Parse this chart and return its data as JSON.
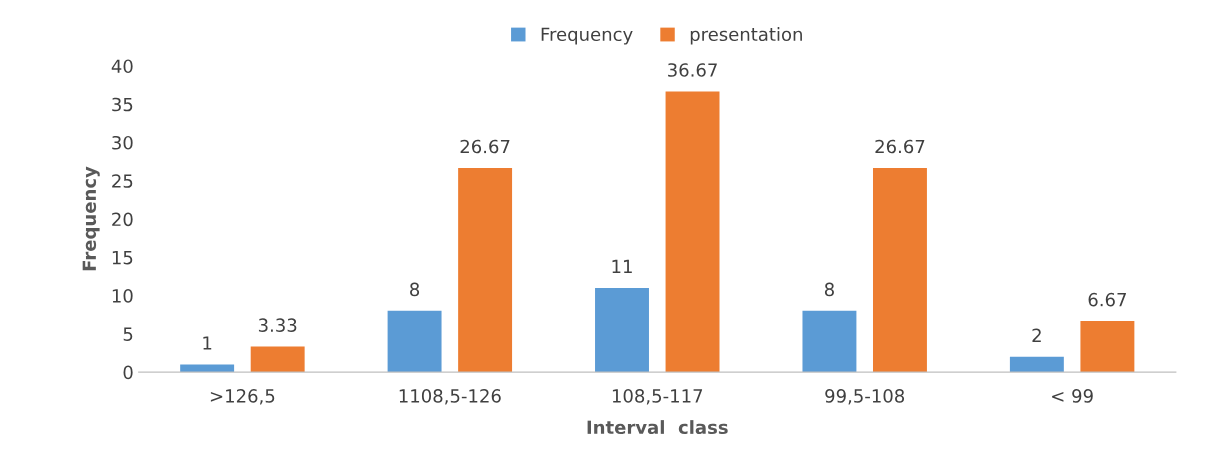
{
  "chart_data": {
    "type": "bar",
    "xlabel": "Interval  class",
    "ylabel": "Frequency",
    "categories": [
      ">126,5",
      "1108,5-126",
      "108,5-117",
      "99,5-108",
      "< 99"
    ],
    "series": [
      {
        "name": "Frequency",
        "color": "#5b9bd5",
        "values": [
          1,
          8,
          11,
          8,
          2
        ]
      },
      {
        "name": "presentation",
        "color": "#ed7d31",
        "values": [
          3.33,
          26.67,
          36.67,
          26.67,
          6.67
        ]
      }
    ],
    "ylim": [
      0,
      40
    ],
    "yticks": [
      0,
      5,
      10,
      15,
      20,
      25,
      30,
      35,
      40
    ],
    "data_labels": true,
    "legend": "top",
    "grid": false
  }
}
